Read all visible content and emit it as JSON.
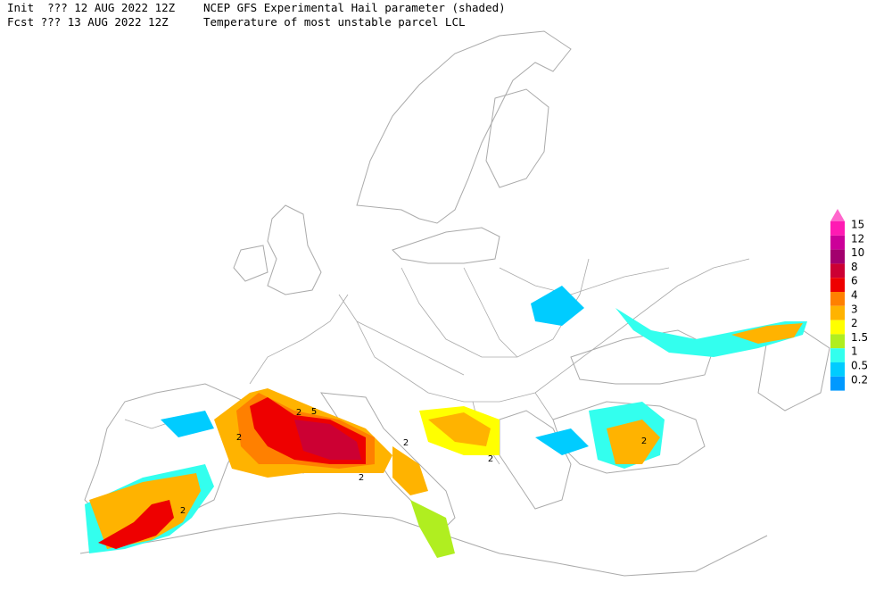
{
  "header": {
    "line1_time": "Init  ??? 12 AUG 2022 12Z",
    "line1_title": "NCEP GFS Experimental Hail parameter (shaded)",
    "line2_time": "Fcst ??? 13 AUG 2022 12Z",
    "line2_title": "Temperature of most unstable parcel LCL"
  },
  "legend": {
    "top_arrow_color": "#ff66cc",
    "items": [
      {
        "value": 15,
        "color": "#ff1ab3"
      },
      {
        "value": 12,
        "color": "#cc0099"
      },
      {
        "value": 10,
        "color": "#a3006e"
      },
      {
        "value": 8,
        "color": "#cc0033"
      },
      {
        "value": 6,
        "color": "#ee0000"
      },
      {
        "value": 4,
        "color": "#ff8000"
      },
      {
        "value": 3,
        "color": "#ffb300"
      },
      {
        "value": 2,
        "color": "#ffff00"
      },
      {
        "value": 1.5,
        "color": "#b0ee20"
      },
      {
        "value": 1,
        "color": "#33ffee"
      },
      {
        "value": 0.5,
        "color": "#00ccff"
      },
      {
        "value": 0.2,
        "color": "#0099ff"
      }
    ]
  },
  "contour_labels": [
    "2",
    "5",
    "2",
    "2",
    "2",
    "2",
    "2",
    "2"
  ]
}
